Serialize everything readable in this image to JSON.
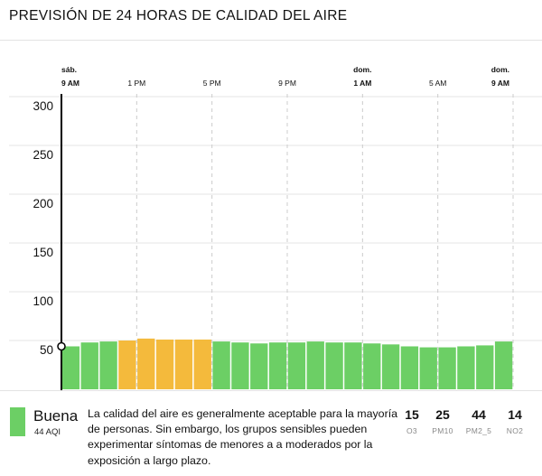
{
  "header": {
    "title": "PREVISIÓN DE 24 HORAS DE CALIDAD DEL AIRE"
  },
  "colors": {
    "good": "#6ccf65",
    "moderate": "#f4ba3c",
    "grid": "#cccccc",
    "axis": "#000000"
  },
  "chart_data": {
    "type": "bar",
    "title": "",
    "xlabel": "",
    "ylabel": "",
    "ylim": [
      0,
      300
    ],
    "yticks": [
      "50",
      "100",
      "150",
      "200",
      "250",
      "300"
    ],
    "grid": true,
    "x_ticks": [
      {
        "day": "sáb.",
        "time": "9 AM",
        "bold": true
      },
      {
        "day": "",
        "time": "1 PM",
        "bold": false
      },
      {
        "day": "",
        "time": "5 PM",
        "bold": false
      },
      {
        "day": "",
        "time": "9 PM",
        "bold": false
      },
      {
        "day": "dom.",
        "time": "1 AM",
        "bold": true
      },
      {
        "day": "",
        "time": "5 AM",
        "bold": false
      },
      {
        "day": "dom.",
        "time": "9 AM",
        "bold": true
      }
    ],
    "hours": [
      "9 AM",
      "10 AM",
      "11 AM",
      "12 PM",
      "1 PM",
      "2 PM",
      "3 PM",
      "4 PM",
      "5 PM",
      "6 PM",
      "7 PM",
      "8 PM",
      "9 PM",
      "10 PM",
      "11 PM",
      "12 AM",
      "1 AM",
      "2 AM",
      "3 AM",
      "4 AM",
      "5 AM",
      "6 AM",
      "7 AM",
      "8 AM",
      "9 AM"
    ],
    "values": [
      44,
      48,
      49,
      50,
      52,
      51,
      51,
      51,
      49,
      48,
      47,
      48,
      48,
      49,
      48,
      48,
      47,
      46,
      44,
      43,
      43,
      44,
      45,
      49
    ],
    "categories": [
      "good",
      "good",
      "good",
      "moderate",
      "moderate",
      "moderate",
      "moderate",
      "moderate",
      "good",
      "good",
      "good",
      "good",
      "good",
      "good",
      "good",
      "good",
      "good",
      "good",
      "good",
      "good",
      "good",
      "good",
      "good",
      "good"
    ],
    "current_point": 44
  },
  "summary": {
    "category_label": "Buena",
    "aqi_label": "44 AQI",
    "description": "La calidad del aire es generalmente aceptable para la mayoría de personas. Sin embargo, los grupos sensibles pueden experimentar síntomas de menores a a moderados por la exposición a largo plazo."
  },
  "pollutants": [
    {
      "value": "15",
      "name": "O3"
    },
    {
      "value": "25",
      "name": "PM10"
    },
    {
      "value": "44",
      "name": "PM2_5"
    },
    {
      "value": "14",
      "name": "NO2"
    }
  ]
}
